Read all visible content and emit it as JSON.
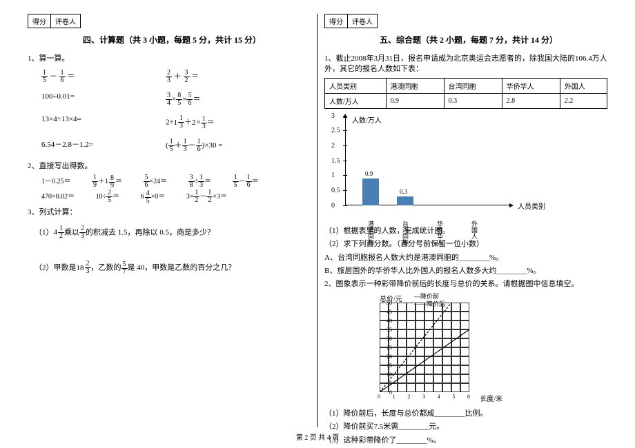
{
  "scoreBox": {
    "score": "得分",
    "reviewer": "评卷人"
  },
  "section4": {
    "title": "四、计算题（共 3 小题，每题 5 分，共计 15 分）",
    "q1": {
      "label": "1、算一算。"
    },
    "calc": {
      "r1a_1n": "1",
      "r1a_1d": "5",
      "r1a_2n": "1",
      "r1a_2d": "6",
      "r1b_1n": "2",
      "r1b_1d": "3",
      "r1b_2n": "3",
      "r1b_2d": "2",
      "r2a": "100÷0.01=",
      "r2b_1n": "3",
      "r2b_1d": "4",
      "r2b_2n": "8",
      "r2b_2d": "5",
      "r2b_3n": "5",
      "r2b_3d": "6",
      "r3a": "13×4÷13×4=",
      "r3b_1w": "1",
      "r3b_1n": "1",
      "r3b_1d": "3",
      "r3b_2w": "2",
      "r3b_2n": "1",
      "r3b_2d": "3",
      "r4a": "6.54－2.8－1.2=",
      "r4b_1n": "1",
      "r4b_1d": "5",
      "r4b_2n": "1",
      "r4b_2d": "3",
      "r4b_3n": "1",
      "r4b_3d": "6",
      "r4b_k": "×30 ="
    },
    "q2": {
      "label": "2、直接写出得数。"
    },
    "direct": {
      "l1a": "1－0.25＝",
      "l1b_1n": "1",
      "l1b_1d": "9",
      "l1b_2w": "1",
      "l1b_2n": "8",
      "l1b_2d": "9",
      "l1c_1n": "5",
      "l1c_1d": "6",
      "l1c_k": "×24＝",
      "l1d_1n": "3",
      "l1d_1d": "8",
      "l1d_2n": "1",
      "l1d_2d": "3",
      "l1e_1n": "1",
      "l1e_1d": "5",
      "l1e_2n": "1",
      "l1e_2d": "6",
      "l2a": "470×0.02＝",
      "l2b_1n": "2",
      "l2b_1d": "5",
      "l2b_k": "10÷",
      "l2c_1w": "6",
      "l2c_1n": "4",
      "l2c_1d": "5",
      "l2c_k": "×0＝",
      "l2d_1n": "1",
      "l2d_1d": "2",
      "l2d_2n": "1",
      "l2d_2d": "2",
      "l2d_k": "3×",
      "l2d_m": "－",
      "l2d_e": "×3＝"
    },
    "q3": {
      "label": "3、列式计算："
    },
    "sub": {
      "s1_pre": "（1）",
      "s1_w": "4",
      "s1_n": "1",
      "s1_d": "2",
      "s1_mid": "乘以",
      "s1_2n": "2",
      "s1_2d": "3",
      "s1_post": "的积减去 1.5，再除以 0.5，商是多少？",
      "s2_pre": "（2）甲数是",
      "s2_w": "18",
      "s2_n": "2",
      "s2_d": "3",
      "s2_mid": "，乙数的",
      "s2_2n": "5",
      "s2_2d": "7",
      "s2_post": "是 40，甲数是乙数的百分之几？"
    }
  },
  "section5": {
    "title": "五、综合题（共 2 小题，每题 7 分，共计 14 分）",
    "intro": "1、截止2008年3月31日，报名申请成为北京奥运会志愿者的，除我国大陆的106.4万人外，其它的报名人数如下表：",
    "table": {
      "h1": "人员类别",
      "h2": "港澳同胞",
      "h3": "台湾同胞",
      "h4": "华侨华人",
      "h5": "外国人",
      "r1": "人数/万人",
      "v1": "0.9",
      "v2": "0.3",
      "v3": "2.8",
      "v4": "2.2"
    },
    "chart": {
      "ytitle": "人数/万人",
      "xtitle": "人员类别",
      "ticks": [
        "3",
        "2.5",
        "2",
        "1.5",
        "1",
        "0.5",
        "0"
      ],
      "bars": [
        {
          "label": "港澳同胞",
          "value": 0.9,
          "text": "0.9"
        },
        {
          "label": "台湾同胞",
          "value": 0.3,
          "text": "0.3"
        },
        {
          "label": "华侨华人",
          "value": null,
          "text": ""
        },
        {
          "label": "外国人",
          "value": null,
          "text": ""
        }
      ],
      "color": "#4a7fb5"
    },
    "sub1": "（1）根据表里的人数，完成统计图。",
    "sub2": "（2）求下列百分数。（百分号前保留一位小数）",
    "subA": "A、台湾同胞报名人数大约是港澳同胞的________%。",
    "subB": "B、旅居国外的华侨华人比外国人的报名人数多大约________%。",
    "q2": "2、图象表示一种彩带降价前后的长度与总价的关系。请根据图中信息填空。",
    "graph": {
      "ytitle": "总价/元",
      "xtitle": "长度/米",
      "leg1": "---降价前",
      "leg2": "——降价后",
      "yticks": [
        "50",
        "45",
        "40",
        "35",
        "30",
        "25",
        "20",
        "15",
        "10",
        "5",
        "0"
      ],
      "xticks": [
        "0",
        "1",
        "2",
        "3",
        "4",
        "5",
        "6"
      ]
    },
    "g1": "（1）降价前后，长度与总价都成________比例。",
    "g2": "（2）降价前买7.5米需________元。",
    "g3": "（3）这种彩带降价了________%。"
  },
  "footer": "第 2 页  共 4 页"
}
